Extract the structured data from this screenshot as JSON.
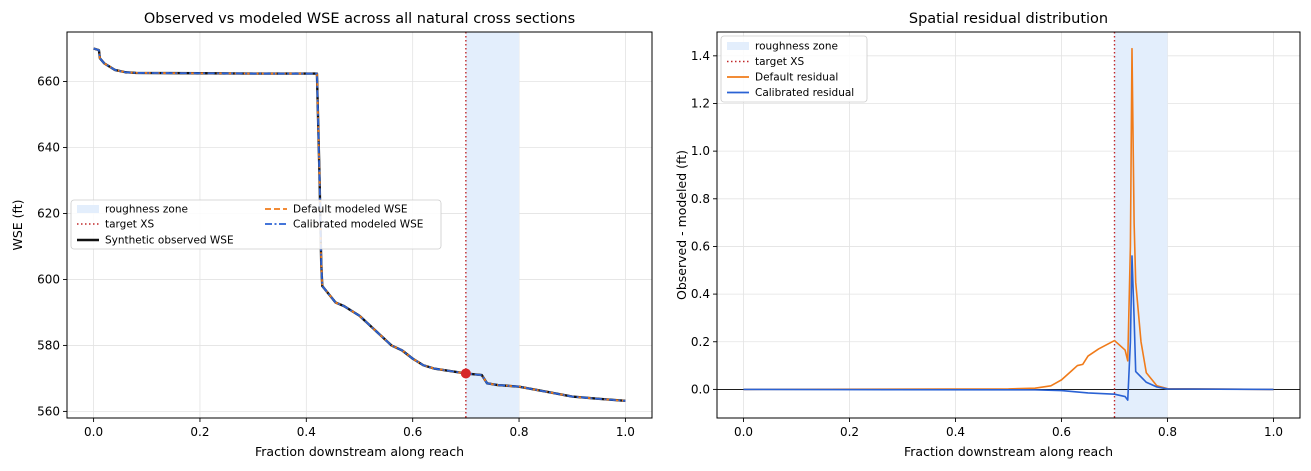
{
  "chart_data": [
    {
      "type": "line",
      "title": "Observed vs modeled WSE across all natural cross sections",
      "xlabel": "Fraction downstream along reach",
      "ylabel": "WSE (ft)",
      "xlim": [
        -0.05,
        1.05
      ],
      "ylim": [
        558,
        675
      ],
      "xticks": [
        0.0,
        0.2,
        0.4,
        0.6,
        0.8,
        1.0
      ],
      "xtick_labels": [
        "0.0",
        "0.2",
        "0.4",
        "0.6",
        "0.8",
        "1.0"
      ],
      "yticks": [
        560,
        580,
        600,
        620,
        640,
        660
      ],
      "ytick_labels": [
        "560",
        "580",
        "600",
        "620",
        "640",
        "660"
      ],
      "grid": true,
      "legend_position": "center-left",
      "legend": [
        "roughness zone",
        "target XS",
        "Synthetic observed WSE",
        "Default modeled WSE",
        "Calibrated modeled WSE"
      ],
      "roughness_zone": [
        0.7,
        0.8
      ],
      "target_xs": 0.7,
      "target_point": {
        "x": 0.7,
        "y": 571.5
      },
      "x": [
        0.0,
        0.01,
        0.012,
        0.02,
        0.03,
        0.04,
        0.06,
        0.08,
        0.2,
        0.3,
        0.42,
        0.425,
        0.428,
        0.43,
        0.44,
        0.455,
        0.47,
        0.48,
        0.5,
        0.52,
        0.54,
        0.56,
        0.58,
        0.6,
        0.62,
        0.64,
        0.66,
        0.68,
        0.7,
        0.73,
        0.74,
        0.76,
        0.8,
        0.85,
        0.9,
        0.95,
        1.0
      ],
      "series": [
        {
          "name": "Synthetic observed WSE",
          "color": "#111111",
          "style": "solid",
          "values": [
            670,
            669.5,
            667,
            665.5,
            664.5,
            663.5,
            662.8,
            662.6,
            662.5,
            662.4,
            662.4,
            630,
            605,
            598,
            596,
            593,
            592,
            591,
            589,
            586,
            583,
            580,
            578.5,
            576,
            574,
            573,
            572.5,
            572,
            571.5,
            571,
            568.5,
            568,
            567.5,
            566,
            564.5,
            563.8,
            563.2
          ]
        },
        {
          "name": "Default modeled WSE",
          "color": "#f07b1a",
          "style": "dashed",
          "values": [
            670,
            669.5,
            667,
            665.5,
            664.5,
            663.5,
            662.8,
            662.6,
            662.5,
            662.4,
            662.4,
            630,
            605,
            598,
            596,
            593,
            592,
            591,
            589,
            586,
            583,
            580,
            578.5,
            576,
            574,
            573,
            572.5,
            572,
            571.5,
            571,
            568.5,
            568,
            567.5,
            566,
            564.5,
            563.8,
            563.2
          ]
        },
        {
          "name": "Calibrated modeled WSE",
          "color": "#2a62d4",
          "style": "dashdot",
          "values": [
            670,
            669.5,
            667,
            665.5,
            664.5,
            663.5,
            662.8,
            662.6,
            662.5,
            662.4,
            662.4,
            630,
            605,
            598,
            596,
            593,
            592,
            591,
            589,
            586,
            583,
            580,
            578.5,
            576,
            574,
            573,
            572.5,
            572,
            571.5,
            571,
            568.5,
            568,
            567.5,
            566,
            564.5,
            563.8,
            563.2
          ]
        }
      ]
    },
    {
      "type": "line",
      "title": "Spatial residual distribution",
      "xlabel": "Fraction downstream along reach",
      "ylabel": "Observed - modeled (ft)",
      "xlim": [
        -0.05,
        1.05
      ],
      "ylim": [
        -0.12,
        1.5
      ],
      "xticks": [
        0.0,
        0.2,
        0.4,
        0.6,
        0.8,
        1.0
      ],
      "xtick_labels": [
        "0.0",
        "0.2",
        "0.4",
        "0.6",
        "0.8",
        "1.0"
      ],
      "yticks": [
        0.0,
        0.2,
        0.4,
        0.6,
        0.8,
        1.0,
        1.2,
        1.4
      ],
      "ytick_labels": [
        "0.0",
        "0.2",
        "0.4",
        "0.6",
        "0.8",
        "1.0",
        "1.2",
        "1.4"
      ],
      "grid": true,
      "legend_position": "top-left",
      "legend": [
        "roughness zone",
        "target XS",
        "Default residual",
        "Calibrated residual"
      ],
      "roughness_zone": [
        0.7,
        0.8
      ],
      "target_xs": 0.7,
      "zero_line": 0.0,
      "series": [
        {
          "name": "Default residual",
          "color": "#f07b1a",
          "x": [
            0.0,
            0.5,
            0.55,
            0.58,
            0.6,
            0.62,
            0.63,
            0.64,
            0.65,
            0.67,
            0.7,
            0.72,
            0.725,
            0.73,
            0.733,
            0.737,
            0.74,
            0.75,
            0.76,
            0.78,
            0.8,
            1.0
          ],
          "values": [
            0.0,
            0.002,
            0.005,
            0.015,
            0.04,
            0.08,
            0.1,
            0.105,
            0.14,
            0.17,
            0.205,
            0.165,
            0.12,
            0.6,
            1.43,
            0.7,
            0.45,
            0.2,
            0.07,
            0.015,
            0.003,
            0.0
          ]
        },
        {
          "name": "Calibrated residual",
          "color": "#2a62d4",
          "x": [
            0.0,
            0.55,
            0.6,
            0.65,
            0.7,
            0.72,
            0.725,
            0.73,
            0.733,
            0.737,
            0.74,
            0.76,
            0.78,
            0.8,
            1.0
          ],
          "values": [
            0.0,
            -0.002,
            -0.005,
            -0.015,
            -0.02,
            -0.03,
            -0.045,
            0.2,
            0.56,
            0.3,
            0.075,
            0.03,
            0.01,
            0.002,
            0.0
          ]
        }
      ]
    }
  ]
}
